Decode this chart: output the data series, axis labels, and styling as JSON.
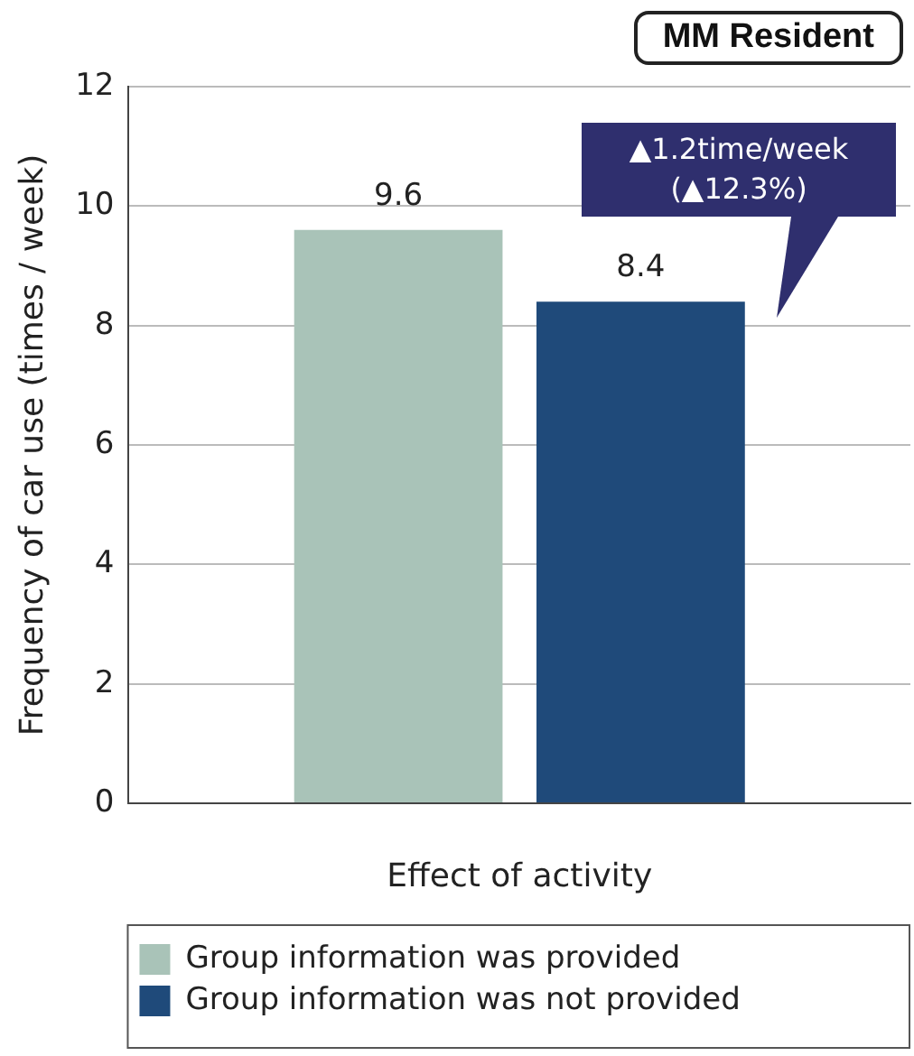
{
  "chart_data": {
    "type": "bar",
    "title": "MM Resident",
    "xlabel": "Effect of activity",
    "ylabel": "Frequency of car use (times / week)",
    "categories": [
      null
    ],
    "series": [
      {
        "name": "Group information was provided",
        "color": "#a9c3b8",
        "values": [
          9.6
        ]
      },
      {
        "name": "Group information was not provided",
        "color": "#1f4a7a",
        "values": [
          8.4
        ]
      }
    ],
    "ylim": [
      0,
      12
    ],
    "yticks": [
      0,
      2,
      4,
      6,
      8,
      10,
      12
    ],
    "grid": "y",
    "legend": "bottom",
    "data_labels": true,
    "annotations": [
      "▲1.2time/week\n(▲12.3%)"
    ]
  }
}
